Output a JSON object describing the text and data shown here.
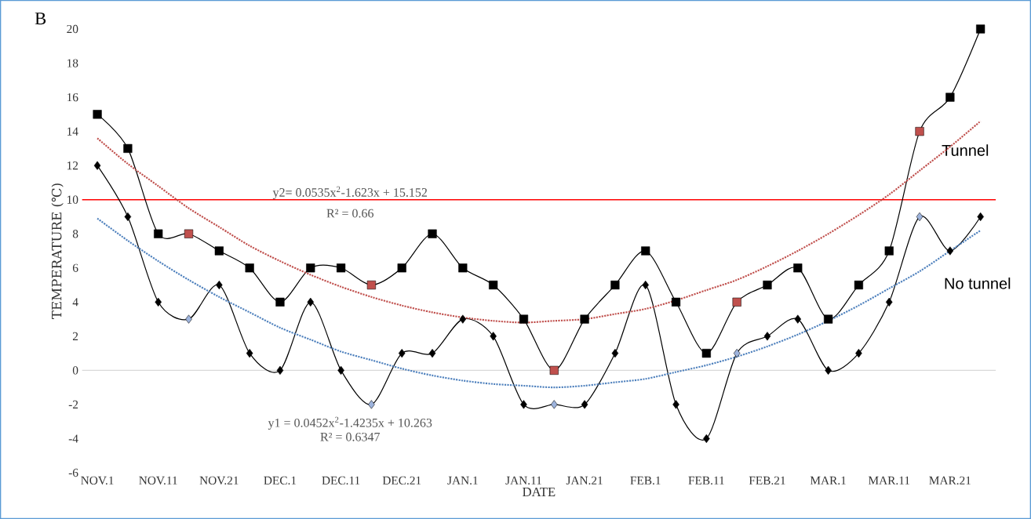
{
  "chart_data": {
    "type": "line",
    "xlabel": "DATE",
    "ylabel": "TEMPERATURE (℃)",
    "categories": [
      "NOV.1",
      null,
      "NOV.11",
      null,
      "NOV.21",
      null,
      "DEC.1",
      null,
      "DEC.11",
      null,
      "DEC.21",
      null,
      "JAN.1",
      null,
      "JAN.11",
      null,
      "JAN.21",
      null,
      "FEB.1",
      null,
      "FEB.11",
      null,
      "FEB.21",
      null,
      "MAR.1",
      null,
      "MAR.11",
      null,
      "MAR.21",
      null
    ],
    "ylim": [
      -6,
      20
    ],
    "yticks": [
      -6,
      -4,
      -2,
      0,
      2,
      4,
      6,
      8,
      10,
      12,
      14,
      16,
      18,
      20
    ],
    "grid": false,
    "series": [
      {
        "name": "Tunnel",
        "color": "#000000",
        "marker": "square",
        "values": [
          15,
          13,
          8,
          8,
          7,
          6,
          4,
          6,
          6,
          5,
          6,
          8,
          6,
          5,
          3,
          0,
          3,
          5,
          7,
          4,
          1,
          4,
          5,
          6,
          3,
          5,
          7,
          14,
          16,
          20
        ],
        "colors": [
          "#000000",
          "#000000",
          "#000000",
          "#c0504d",
          "#000000",
          "#000000",
          "#000000",
          "#000000",
          "#000000",
          "#c0504d",
          "#000000",
          "#000000",
          "#000000",
          "#000000",
          "#000000",
          "#c0504d",
          "#000000",
          "#000000",
          "#000000",
          "#000000",
          "#000000",
          "#c0504d",
          "#000000",
          "#000000",
          "#000000",
          "#000000",
          "#000000",
          "#c0504d",
          "#000000",
          "#000000"
        ]
      },
      {
        "name": "No tunnel",
        "color": "#000000",
        "marker": "diamond",
        "values": [
          12,
          9,
          4,
          3,
          5,
          1,
          0,
          4,
          0,
          -2,
          1,
          1,
          3,
          2,
          -2,
          -2,
          -2,
          1,
          5,
          -2,
          -4,
          1,
          2,
          3,
          0,
          1,
          4,
          9,
          7,
          9
        ],
        "colors": [
          "#000000",
          "#000000",
          "#000000",
          "#9db3dc",
          "#000000",
          "#000000",
          "#000000",
          "#000000",
          "#000000",
          "#9db3dc",
          "#000000",
          "#000000",
          "#000000",
          "#000000",
          "#000000",
          "#9db3dc",
          "#000000",
          "#000000",
          "#000000",
          "#000000",
          "#000000",
          "#9db3dc",
          "#000000",
          "#000000",
          "#000000",
          "#000000",
          "#000000",
          "#9db3dc",
          "#000000",
          "#000000"
        ]
      },
      {
        "type": "line",
        "color": "#c0504d",
        "marker": "none",
        "line_style": "dotted",
        "values": [
          13.6,
          12.1,
          10.8,
          9.5,
          8.4,
          7.3,
          6.4,
          5.6,
          4.9,
          4.3,
          3.8,
          3.4,
          3.1,
          2.9,
          2.8,
          2.9,
          3.0,
          3.3,
          3.6,
          4.1,
          4.7,
          5.3,
          6.1,
          7.0,
          8.0,
          9.1,
          10.3,
          11.7,
          13.1,
          14.6
        ]
      },
      {
        "type": "line",
        "color": "#4f81bd",
        "marker": "none",
        "line_style": "dotted",
        "values": [
          8.9,
          7.6,
          6.4,
          5.3,
          4.3,
          3.4,
          2.5,
          1.8,
          1.1,
          0.6,
          0.1,
          -0.3,
          -0.6,
          -0.8,
          -0.9,
          -1.0,
          -0.9,
          -0.7,
          -0.5,
          -0.1,
          0.3,
          0.8,
          1.4,
          2.1,
          2.9,
          3.8,
          4.8,
          5.8,
          7.0,
          8.2
        ]
      }
    ],
    "ref_lines": [
      {
        "axis": "y",
        "value": 0,
        "color": "#d9d9d9"
      },
      {
        "axis": "y",
        "value": 10,
        "color": "#ff0000"
      }
    ],
    "annotations": [
      "B",
      "y2= 0.0535x$^{2}$-1.623x + 15.152",
      "R² = 0.66",
      "y1 = 0.0452x$^{2}$-1.4235x + 10.263",
      "R² = 0.6347"
    ]
  }
}
